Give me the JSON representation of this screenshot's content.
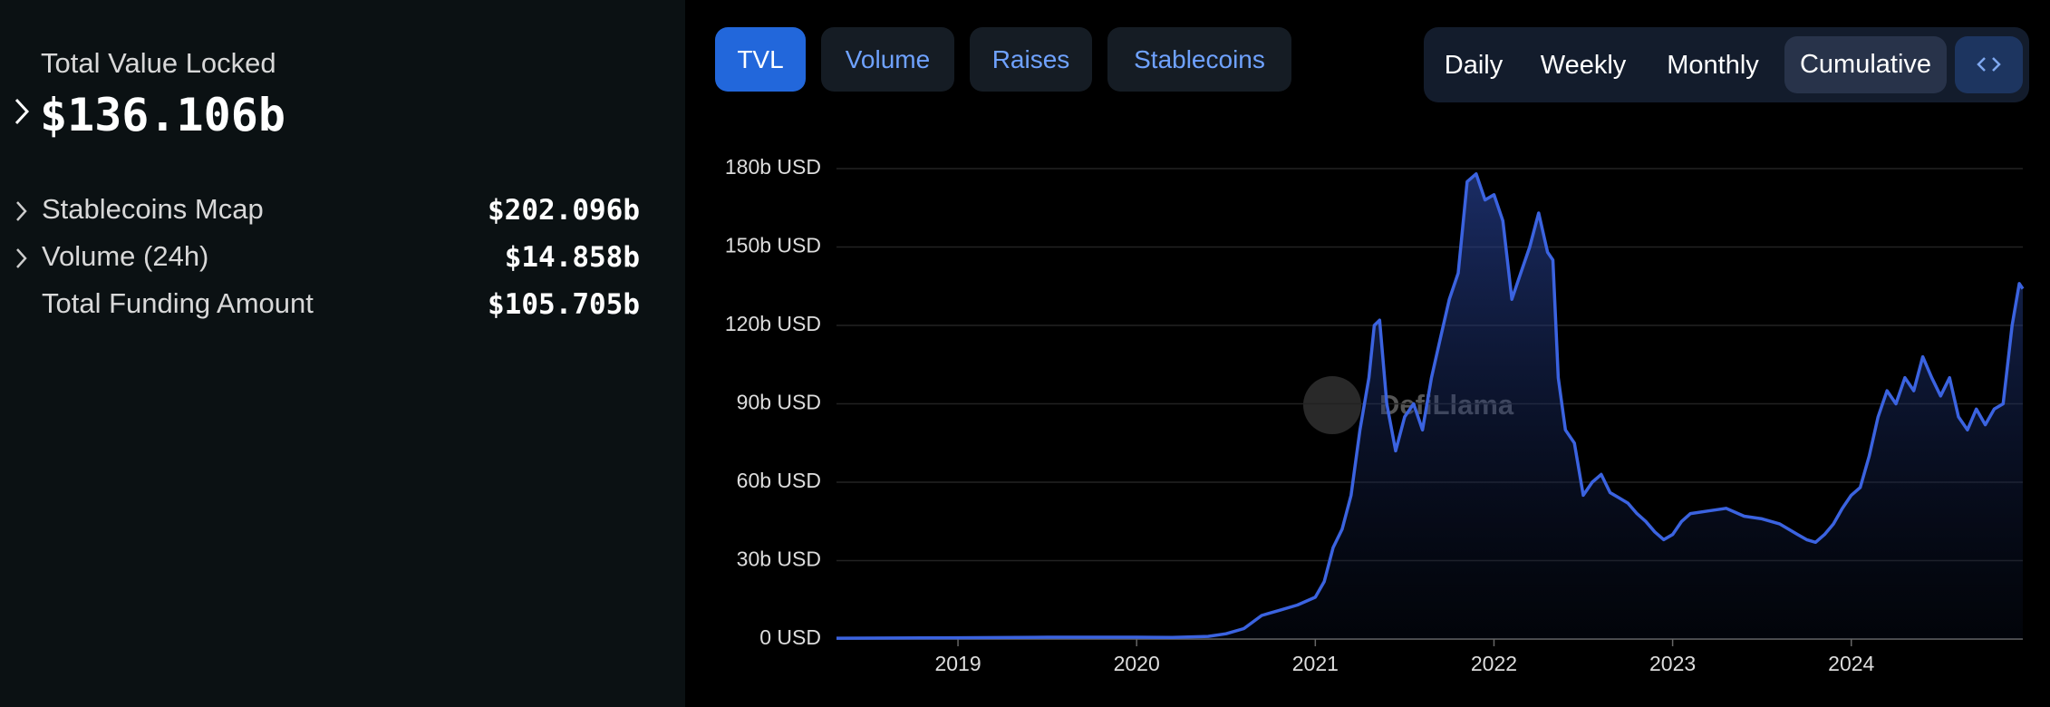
{
  "summary": {
    "title": "Total Value Locked",
    "value": "$136.106b",
    "rows": [
      {
        "label": "Stablecoins Mcap",
        "value": "$202.096b"
      },
      {
        "label": "Volume (24h)",
        "value": "$14.858b"
      },
      {
        "label": "Total Funding Amount",
        "value": "$105.705b"
      }
    ]
  },
  "tabs": [
    "TVL",
    "Volume",
    "Raises",
    "Stablecoins"
  ],
  "periods": [
    "Daily",
    "Weekly",
    "Monthly",
    "Cumulative"
  ],
  "watermark": "DefiLlama",
  "chart_data": {
    "type": "area",
    "color": "#3b63e0",
    "grid": true,
    "x": [
      2018.32,
      2019,
      2019.5,
      2020,
      2020.2,
      2020.4,
      2020.5,
      2020.6,
      2020.7,
      2020.8,
      2020.9,
      2021.0,
      2021.05,
      2021.1,
      2021.15,
      2021.2,
      2021.25,
      2021.3,
      2021.33,
      2021.36,
      2021.4,
      2021.45,
      2021.5,
      2021.55,
      2021.6,
      2021.65,
      2021.7,
      2021.75,
      2021.8,
      2021.85,
      2021.9,
      2021.95,
      2022.0,
      2022.05,
      2022.1,
      2022.15,
      2022.2,
      2022.25,
      2022.3,
      2022.33,
      2022.36,
      2022.4,
      2022.45,
      2022.5,
      2022.55,
      2022.6,
      2022.65,
      2022.7,
      2022.75,
      2022.8,
      2022.85,
      2022.9,
      2022.95,
      2023.0,
      2023.05,
      2023.1,
      2023.2,
      2023.3,
      2023.4,
      2023.5,
      2023.6,
      2023.7,
      2023.75,
      2023.8,
      2023.85,
      2023.9,
      2023.95,
      2024.0,
      2024.05,
      2024.1,
      2024.15,
      2024.2,
      2024.25,
      2024.3,
      2024.35,
      2024.4,
      2024.45,
      2024.5,
      2024.55,
      2024.6,
      2024.65,
      2024.7,
      2024.75,
      2024.8,
      2024.85,
      2024.9,
      2024.94,
      2024.96
    ],
    "values": [
      0.3,
      0.5,
      0.7,
      0.7,
      0.6,
      1,
      2,
      4,
      9,
      11,
      13,
      16,
      22,
      35,
      42,
      55,
      80,
      100,
      120,
      122,
      90,
      72,
      85,
      90,
      80,
      100,
      115,
      130,
      140,
      175,
      178,
      168,
      170,
      160,
      130,
      140,
      150,
      163,
      148,
      145,
      100,
      80,
      75,
      55,
      60,
      63,
      56,
      54,
      52,
      48,
      45,
      41,
      38,
      40,
      45,
      48,
      49,
      50,
      47,
      46,
      44,
      40,
      38,
      37,
      40,
      44,
      50,
      55,
      58,
      70,
      85,
      95,
      90,
      100,
      95,
      108,
      100,
      93,
      100,
      85,
      80,
      88,
      82,
      88,
      90,
      120,
      136,
      134
    ],
    "xlim": [
      2018.32,
      2024.96
    ],
    "xticks": [
      2019,
      2020,
      2021,
      2022,
      2023,
      2024
    ],
    "ylim": [
      0,
      180
    ],
    "yticks": [
      {
        "value": 0,
        "label": "0 USD"
      },
      {
        "value": 30,
        "label": "30b USD"
      },
      {
        "value": 60,
        "label": "60b USD"
      },
      {
        "value": 90,
        "label": "90b USD"
      },
      {
        "value": 120,
        "label": "120b USD"
      },
      {
        "value": 150,
        "label": "150b USD"
      },
      {
        "value": 180,
        "label": "180b USD"
      }
    ]
  }
}
